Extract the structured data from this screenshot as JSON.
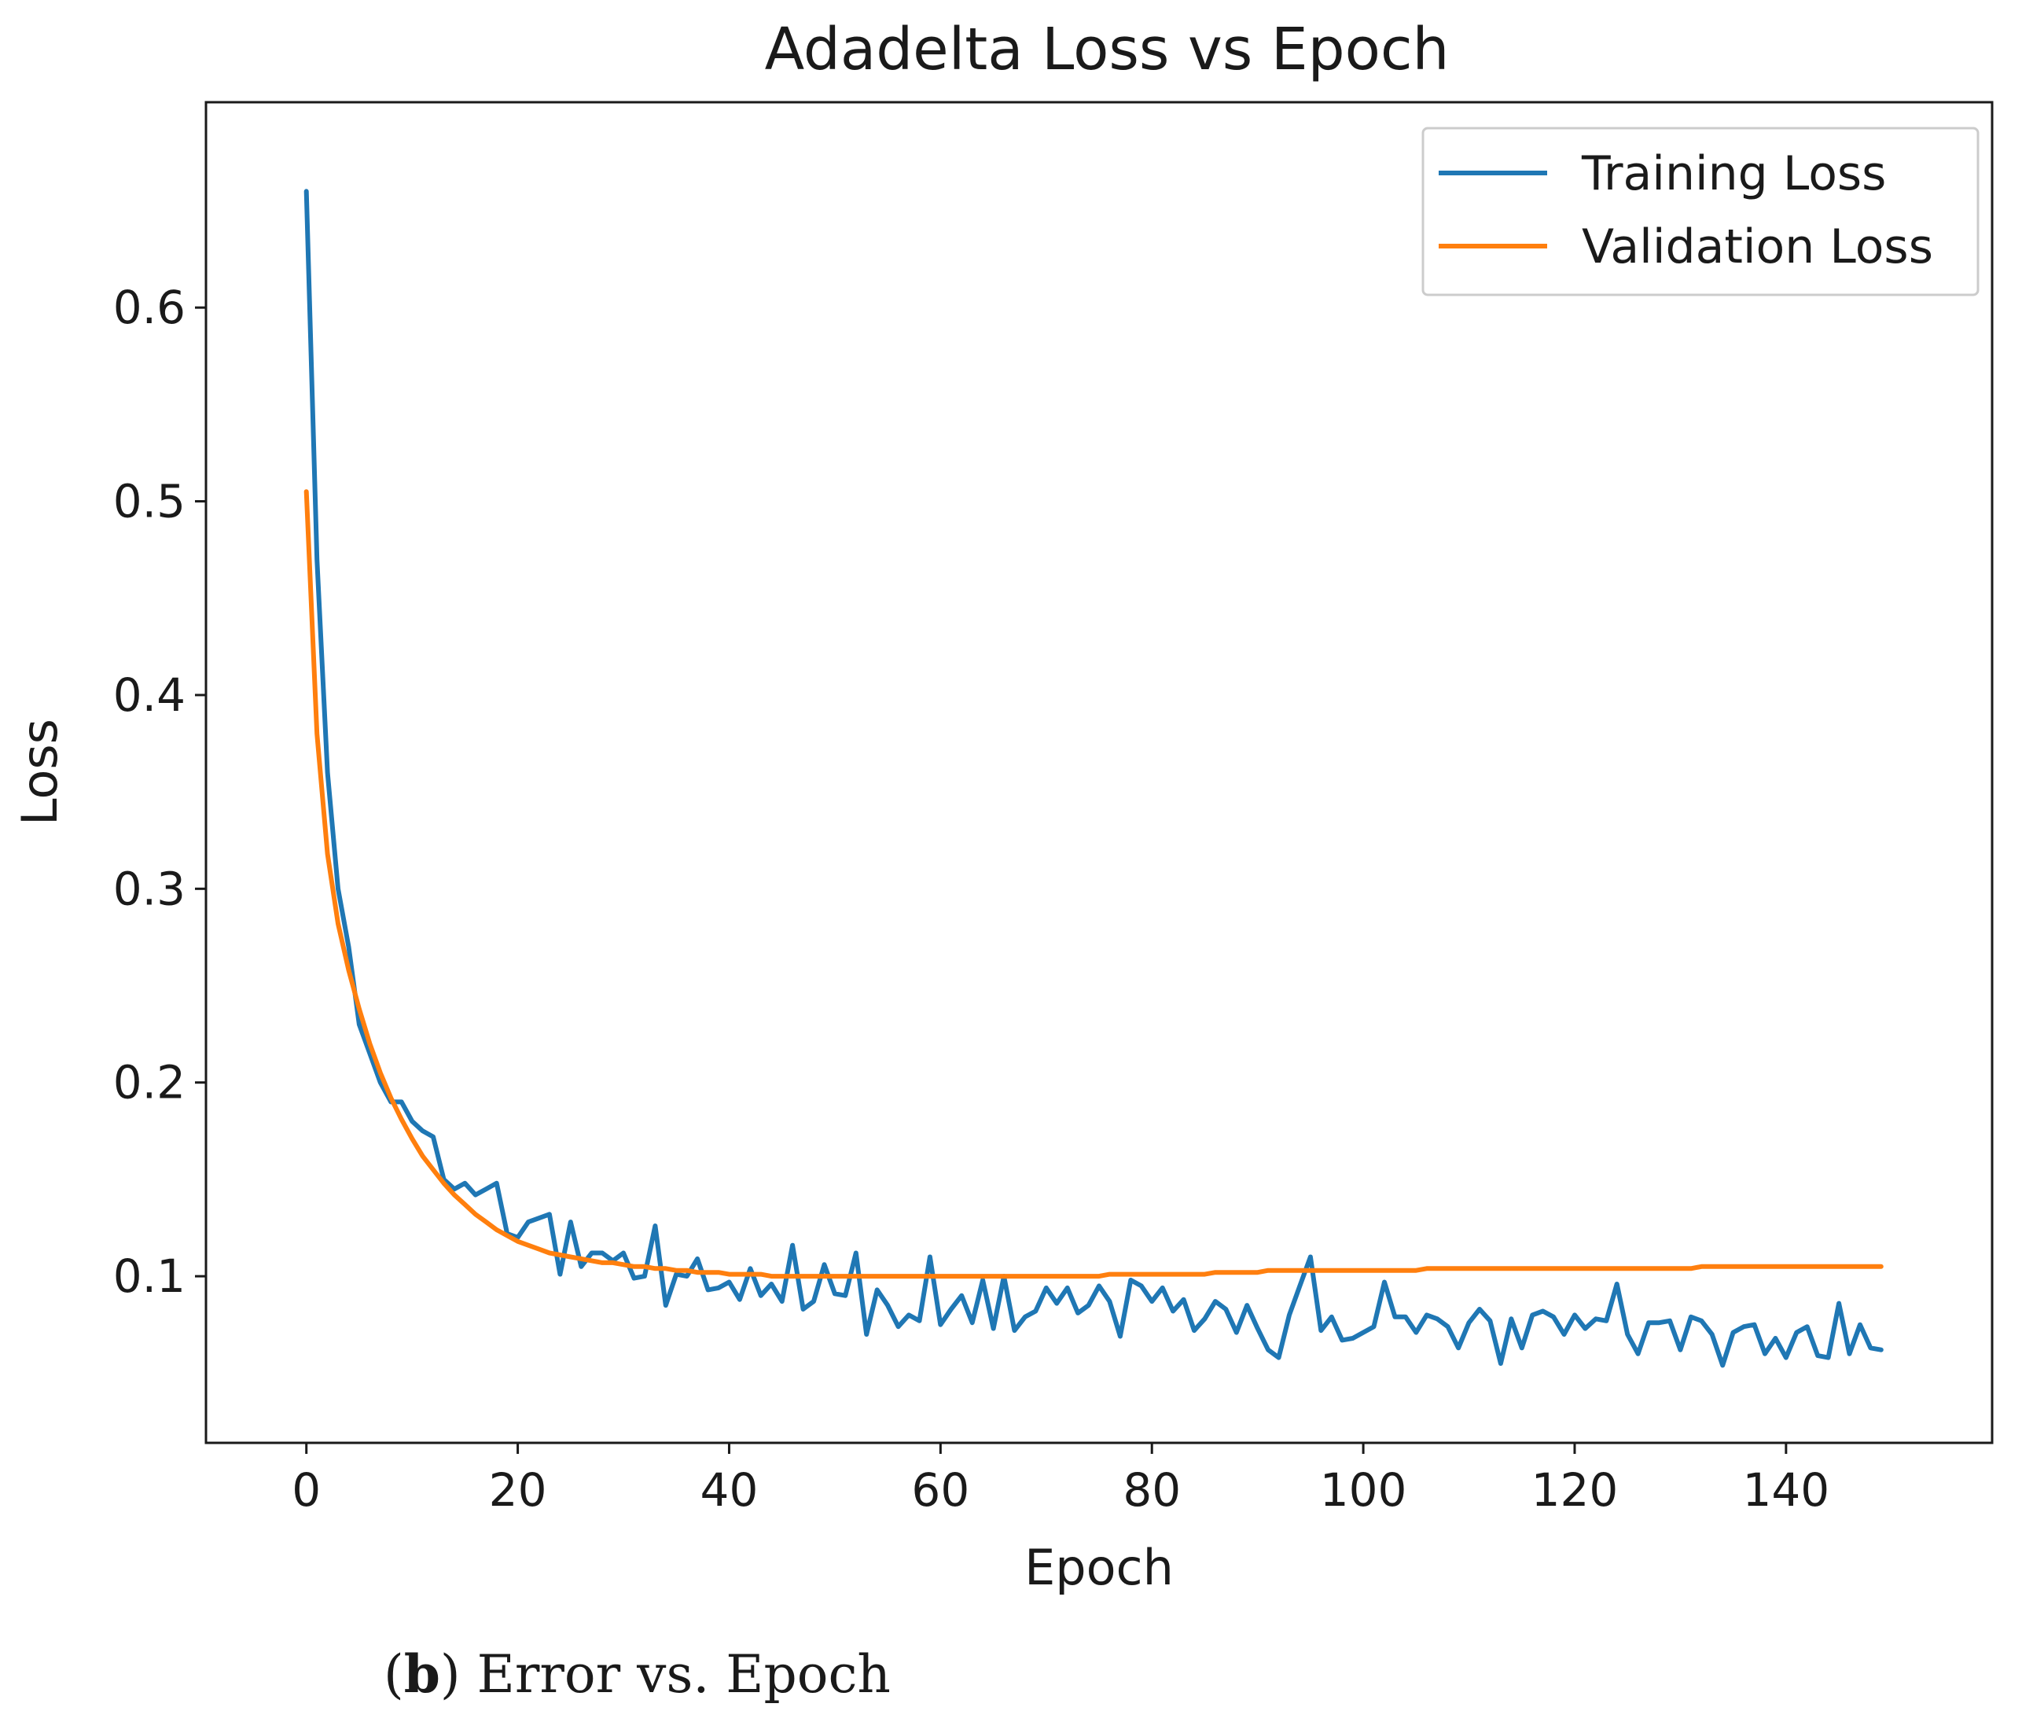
{
  "chart_data": {
    "type": "line",
    "title": "Adadelta Loss vs Epoch",
    "xlabel": "Epoch",
    "ylabel": "Loss",
    "xlim": [
      -9.5,
      159.5
    ],
    "ylim": [
      0.014,
      0.706
    ],
    "x_ticks": [
      0,
      20,
      40,
      60,
      80,
      100,
      120,
      140
    ],
    "y_ticks": [
      0.1,
      0.2,
      0.3,
      0.4,
      0.5,
      0.6
    ],
    "legend_position": "top-right",
    "series": [
      {
        "name": "Training Loss",
        "color": "#1f77b4",
        "x_start": 0,
        "values": [
          0.66,
          0.47,
          0.36,
          0.3,
          0.27,
          0.23,
          0.215,
          0.2,
          0.19,
          0.19,
          0.18,
          0.175,
          0.172,
          0.15,
          0.145,
          0.148,
          0.142,
          0.145,
          0.148,
          0.122,
          0.12,
          0.128,
          0.13,
          0.132,
          0.101,
          0.128,
          0.105,
          0.112,
          0.112,
          0.108,
          0.112,
          0.099,
          0.1,
          0.126,
          0.085,
          0.101,
          0.1,
          0.109,
          0.093,
          0.094,
          0.097,
          0.088,
          0.104,
          0.09,
          0.096,
          0.087,
          0.116,
          0.083,
          0.087,
          0.106,
          0.091,
          0.09,
          0.112,
          0.07,
          0.093,
          0.085,
          0.074,
          0.08,
          0.077,
          0.11,
          0.075,
          0.083,
          0.09,
          0.076,
          0.098,
          0.073,
          0.1,
          0.072,
          0.079,
          0.082,
          0.094,
          0.086,
          0.094,
          0.081,
          0.085,
          0.095,
          0.087,
          0.069,
          0.098,
          0.095,
          0.087,
          0.094,
          0.082,
          0.088,
          0.072,
          0.078,
          0.087,
          0.083,
          0.071,
          0.085,
          0.073,
          0.062,
          0.058,
          0.08,
          0.095,
          0.11,
          0.072,
          0.079,
          0.067,
          0.068,
          0.071,
          0.074,
          0.097,
          0.079,
          0.079,
          0.071,
          0.08,
          0.078,
          0.074,
          0.063,
          0.076,
          0.083,
          0.077,
          0.055,
          0.078,
          0.063,
          0.08,
          0.082,
          0.079,
          0.07,
          0.08,
          0.073,
          0.078,
          0.077,
          0.096,
          0.07,
          0.06,
          0.076,
          0.076,
          0.077,
          0.062,
          0.079,
          0.077,
          0.07,
          0.054,
          0.071,
          0.074,
          0.075,
          0.06,
          0.068,
          0.058,
          0.071,
          0.074,
          0.059,
          0.058,
          0.086,
          0.06,
          0.075,
          0.063,
          0.062
        ]
      },
      {
        "name": "Validation Loss",
        "color": "#ff7f0e",
        "x_start": 0,
        "values": [
          0.505,
          0.38,
          0.318,
          0.282,
          0.258,
          0.238,
          0.22,
          0.205,
          0.192,
          0.181,
          0.171,
          0.162,
          0.155,
          0.148,
          0.142,
          0.137,
          0.132,
          0.128,
          0.124,
          0.121,
          0.118,
          0.116,
          0.114,
          0.112,
          0.111,
          0.11,
          0.109,
          0.108,
          0.107,
          0.107,
          0.106,
          0.105,
          0.105,
          0.104,
          0.104,
          0.103,
          0.103,
          0.102,
          0.102,
          0.102,
          0.101,
          0.101,
          0.101,
          0.101,
          0.1,
          0.1,
          0.1,
          0.1,
          0.1,
          0.1,
          0.1,
          0.1,
          0.1,
          0.1,
          0.1,
          0.1,
          0.1,
          0.1,
          0.1,
          0.1,
          0.1,
          0.1,
          0.1,
          0.1,
          0.1,
          0.1,
          0.1,
          0.1,
          0.1,
          0.1,
          0.1,
          0.1,
          0.1,
          0.1,
          0.1,
          0.1,
          0.101,
          0.101,
          0.101,
          0.101,
          0.101,
          0.101,
          0.101,
          0.101,
          0.101,
          0.101,
          0.102,
          0.102,
          0.102,
          0.102,
          0.102,
          0.103,
          0.103,
          0.103,
          0.103,
          0.103,
          0.103,
          0.103,
          0.103,
          0.103,
          0.103,
          0.103,
          0.103,
          0.103,
          0.103,
          0.103,
          0.104,
          0.104,
          0.104,
          0.104,
          0.104,
          0.104,
          0.104,
          0.104,
          0.104,
          0.104,
          0.104,
          0.104,
          0.104,
          0.104,
          0.104,
          0.104,
          0.104,
          0.104,
          0.104,
          0.104,
          0.104,
          0.104,
          0.104,
          0.104,
          0.104,
          0.104,
          0.105,
          0.105,
          0.105,
          0.105,
          0.105,
          0.105,
          0.105,
          0.105,
          0.105,
          0.105,
          0.105,
          0.105,
          0.105,
          0.105,
          0.105,
          0.105,
          0.105,
          0.105
        ]
      }
    ]
  },
  "caption": {
    "label": "b",
    "text": "Error vs. Epoch"
  }
}
